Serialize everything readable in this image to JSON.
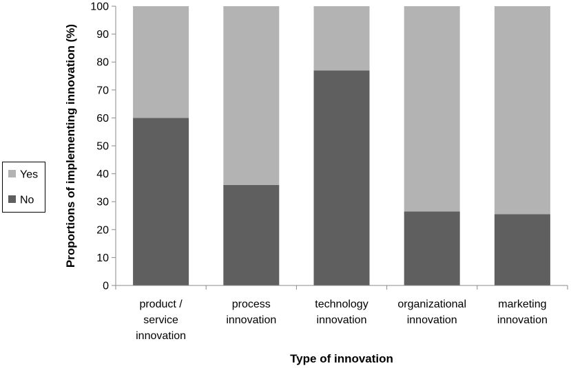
{
  "chart_data": {
    "type": "bar",
    "stacked": true,
    "categories": [
      [
        "product /",
        "service",
        "innovation"
      ],
      [
        "process",
        "innovation"
      ],
      [
        "technology",
        "innovation"
      ],
      [
        "organizational",
        "innovation"
      ],
      [
        "marketing",
        "innovation"
      ]
    ],
    "series": [
      {
        "name": "No",
        "values": [
          60,
          36,
          77,
          26.5,
          25.5
        ],
        "color": "#5f5f5f"
      },
      {
        "name": "Yes",
        "values": [
          40,
          64,
          23,
          73.5,
          74.5
        ],
        "color": "#b3b3b3"
      }
    ],
    "xlabel": "Type of innovation",
    "ylabel": "Proportions of implementing innovation (%)",
    "ylim": [
      0,
      100
    ],
    "yticks": [
      0,
      10,
      20,
      30,
      40,
      50,
      60,
      70,
      80,
      90,
      100
    ],
    "grid": false,
    "legend": {
      "placement": "left",
      "entries": [
        "Yes",
        "No"
      ]
    }
  }
}
